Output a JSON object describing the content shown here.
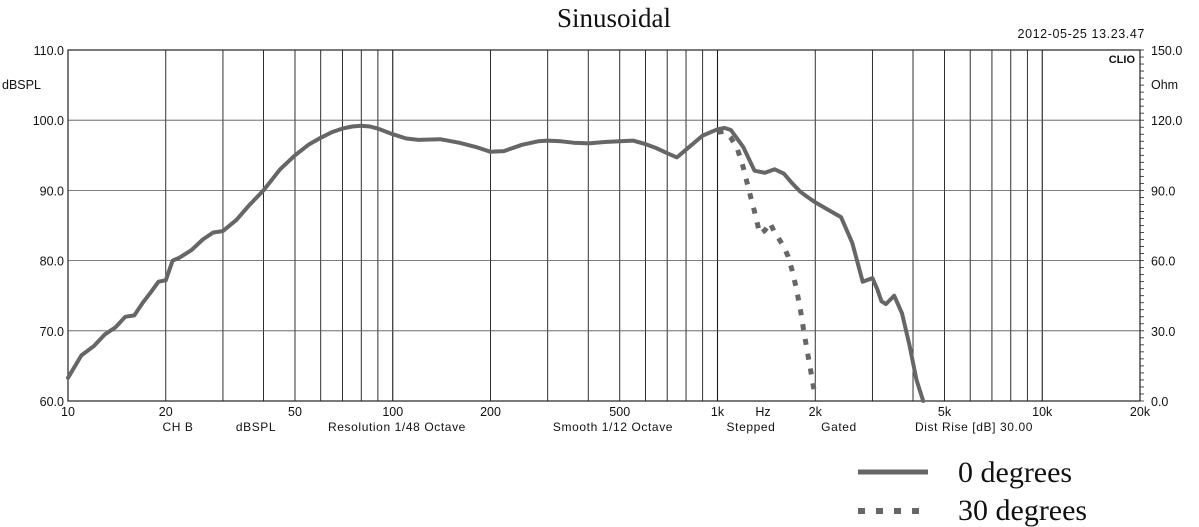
{
  "chart_data": {
    "type": "line",
    "title": "Sinusoidal",
    "timestamp": "2012-05-25 13.23.47",
    "brand": "CLIO",
    "xscale": "log",
    "xlim": [
      10,
      20000
    ],
    "ylim": [
      60,
      110
    ],
    "y2lim": [
      0,
      150
    ],
    "ylabel": "dBSPL",
    "y2label": "Ohm",
    "xunit": "Hz",
    "x_ticks": [
      {
        "v": 10,
        "label": "10"
      },
      {
        "v": 20,
        "label": "20"
      },
      {
        "v": 50,
        "label": "50"
      },
      {
        "v": 100,
        "label": "100"
      },
      {
        "v": 200,
        "label": "200"
      },
      {
        "v": 500,
        "label": "500"
      },
      {
        "v": 1000,
        "label": "1k"
      },
      {
        "v": 2000,
        "label": "2k"
      },
      {
        "v": 5000,
        "label": "5k"
      },
      {
        "v": 10000,
        "label": "10k"
      },
      {
        "v": 20000,
        "label": "20k"
      }
    ],
    "y_ticks": [
      {
        "v": 110,
        "label": "110.0"
      },
      {
        "v": 100,
        "label": "100.0"
      },
      {
        "v": 90,
        "label": "90.0"
      },
      {
        "v": 80,
        "label": "80.0"
      },
      {
        "v": 70,
        "label": "70.0"
      },
      {
        "v": 60,
        "label": "60.0"
      }
    ],
    "y2_ticks": [
      {
        "v": 150,
        "label": "150.0"
      },
      {
        "v": 120,
        "label": "120.0"
      },
      {
        "v": 90,
        "label": "90.0"
      },
      {
        "v": 60,
        "label": "60.0"
      },
      {
        "v": 30,
        "label": "30.0"
      },
      {
        "v": 0,
        "label": "0.0"
      }
    ],
    "info_items": [
      "CH B",
      "dBSPL",
      "Resolution 1/48 Octave",
      "Smooth 1/12 Octave",
      "Stepped",
      "Gated",
      "Dist Rise [dB] 30.00"
    ],
    "grid": true,
    "legend_position": "bottom-right",
    "series": [
      {
        "name": "0 degrees",
        "style": "solid",
        "color": "#666666",
        "x": [
          10,
          11,
          12,
          13,
          14,
          15,
          16,
          17,
          18,
          19,
          20,
          21,
          22,
          24,
          26,
          28,
          30,
          33,
          36,
          40,
          45,
          50,
          55,
          60,
          65,
          70,
          75,
          80,
          85,
          90,
          100,
          110,
          120,
          140,
          160,
          180,
          200,
          220,
          250,
          280,
          300,
          330,
          360,
          400,
          450,
          500,
          550,
          600,
          650,
          700,
          750,
          800,
          900,
          1000,
          1050,
          1100,
          1200,
          1300,
          1400,
          1500,
          1600,
          1700,
          1800,
          1900,
          2000,
          2200,
          2400,
          2600,
          2800,
          3000,
          3100,
          3200,
          3300,
          3500,
          3700,
          3900,
          4100,
          4300
        ],
        "y": [
          63.3,
          66.5,
          67.8,
          69.5,
          70.5,
          72.0,
          72.2,
          74.0,
          75.5,
          77.0,
          77.2,
          80.0,
          80.4,
          81.5,
          83.0,
          84.0,
          84.2,
          85.8,
          87.8,
          90.0,
          93.0,
          95.0,
          96.5,
          97.5,
          98.3,
          98.8,
          99.1,
          99.2,
          99.1,
          98.8,
          98.0,
          97.4,
          97.2,
          97.3,
          96.8,
          96.2,
          95.5,
          95.6,
          96.5,
          97.0,
          97.1,
          97.0,
          96.8,
          96.7,
          96.9,
          97.0,
          97.1,
          96.6,
          96.0,
          95.3,
          94.7,
          95.8,
          97.8,
          98.7,
          98.9,
          98.6,
          96.2,
          92.8,
          92.5,
          93.0,
          92.4,
          91.0,
          89.8,
          89.0,
          88.3,
          87.2,
          86.2,
          82.5,
          77.0,
          77.5,
          76.0,
          74.2,
          73.8,
          75.0,
          72.5,
          68.0,
          63.0,
          60.0
        ]
      },
      {
        "name": "30 degrees",
        "style": "dotted",
        "color": "#666666",
        "x": [
          1000,
          1050,
          1100,
          1150,
          1200,
          1250,
          1300,
          1350,
          1400,
          1450,
          1500,
          1550,
          1600,
          1650,
          1700,
          1750,
          1800,
          1850,
          1900,
          1950,
          2000
        ],
        "y": [
          98.3,
          98.4,
          97.5,
          96.0,
          93.3,
          90.0,
          87.0,
          83.8,
          84.3,
          85.4,
          84.0,
          83.0,
          82.0,
          80.6,
          78.5,
          76.0,
          73.0,
          69.5,
          66.5,
          63.5,
          60.5
        ]
      }
    ]
  }
}
